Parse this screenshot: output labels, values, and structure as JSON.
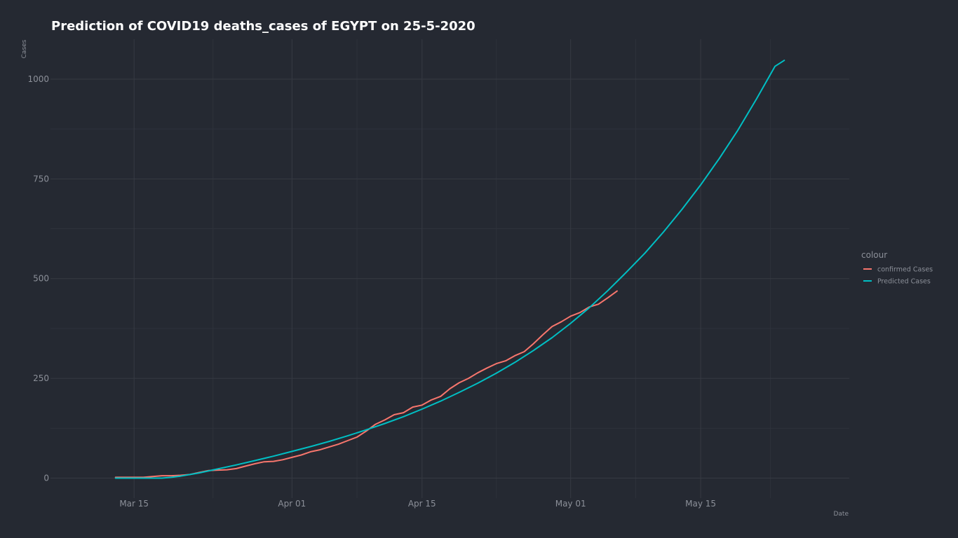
{
  "chart_data": {
    "type": "line",
    "title": "Prediction of COVID19 deaths_cases of EGYPT on 25-5-2020",
    "xlabel": "Date",
    "ylabel": "Cases",
    "x_type": "date",
    "xlim": [
      "2020-03-06",
      "2020-05-31"
    ],
    "ylim": [
      -50,
      1100
    ],
    "x_ticks": [
      {
        "date": "2020-03-15",
        "label": "Mar 15"
      },
      {
        "date": "2020-04-01",
        "label": "Apr 01"
      },
      {
        "date": "2020-04-15",
        "label": "Apr 15"
      },
      {
        "date": "2020-05-01",
        "label": "May 01"
      },
      {
        "date": "2020-05-15",
        "label": "May 15"
      }
    ],
    "y_ticks": [
      0,
      250,
      500,
      750,
      1000
    ],
    "grid": true,
    "legend": {
      "title": "colour",
      "position": "right"
    },
    "series": [
      {
        "name": "confirmed Cases",
        "color": "#f8766d",
        "points": [
          [
            "2020-03-13",
            2
          ],
          [
            "2020-03-14",
            2
          ],
          [
            "2020-03-15",
            2
          ],
          [
            "2020-03-16",
            2
          ],
          [
            "2020-03-17",
            4
          ],
          [
            "2020-03-18",
            6
          ],
          [
            "2020-03-19",
            6
          ],
          [
            "2020-03-20",
            7
          ],
          [
            "2020-03-21",
            9
          ],
          [
            "2020-03-22",
            14
          ],
          [
            "2020-03-23",
            19
          ],
          [
            "2020-03-24",
            20
          ],
          [
            "2020-03-25",
            21
          ],
          [
            "2020-03-26",
            24
          ],
          [
            "2020-03-27",
            30
          ],
          [
            "2020-03-28",
            36
          ],
          [
            "2020-03-29",
            41
          ],
          [
            "2020-03-30",
            42
          ],
          [
            "2020-03-31",
            46
          ],
          [
            "2020-04-01",
            52
          ],
          [
            "2020-04-02",
            58
          ],
          [
            "2020-04-03",
            66
          ],
          [
            "2020-04-04",
            71
          ],
          [
            "2020-04-05",
            78
          ],
          [
            "2020-04-06",
            85
          ],
          [
            "2020-04-07",
            94
          ],
          [
            "2020-04-08",
            103
          ],
          [
            "2020-04-09",
            118
          ],
          [
            "2020-04-10",
            135
          ],
          [
            "2020-04-11",
            146
          ],
          [
            "2020-04-12",
            159
          ],
          [
            "2020-04-13",
            164
          ],
          [
            "2020-04-14",
            178
          ],
          [
            "2020-04-15",
            183
          ],
          [
            "2020-04-16",
            196
          ],
          [
            "2020-04-17",
            205
          ],
          [
            "2020-04-18",
            224
          ],
          [
            "2020-04-19",
            239
          ],
          [
            "2020-04-20",
            250
          ],
          [
            "2020-04-21",
            264
          ],
          [
            "2020-04-22",
            276
          ],
          [
            "2020-04-23",
            287
          ],
          [
            "2020-04-24",
            294
          ],
          [
            "2020-04-25",
            307
          ],
          [
            "2020-04-26",
            317
          ],
          [
            "2020-04-27",
            337
          ],
          [
            "2020-04-28",
            359
          ],
          [
            "2020-04-29",
            380
          ],
          [
            "2020-04-30",
            392
          ],
          [
            "2020-05-01",
            406
          ],
          [
            "2020-05-02",
            415
          ],
          [
            "2020-05-03",
            429
          ],
          [
            "2020-05-04",
            436
          ],
          [
            "2020-05-05",
            452
          ],
          [
            "2020-05-06",
            469
          ]
        ]
      },
      {
        "name": "Predicted Cases",
        "color": "#00bfc4",
        "points": [
          [
            "2020-03-13",
            0
          ],
          [
            "2020-03-16",
            0
          ],
          [
            "2020-03-18",
            0
          ],
          [
            "2020-03-19",
            2
          ],
          [
            "2020-03-20",
            5
          ],
          [
            "2020-03-22",
            13
          ],
          [
            "2020-03-24",
            23
          ],
          [
            "2020-03-26",
            33
          ],
          [
            "2020-03-28",
            44
          ],
          [
            "2020-03-30",
            55
          ],
          [
            "2020-04-01",
            67
          ],
          [
            "2020-04-03",
            79
          ],
          [
            "2020-04-05",
            92
          ],
          [
            "2020-04-07",
            106
          ],
          [
            "2020-04-09",
            121
          ],
          [
            "2020-04-11",
            137
          ],
          [
            "2020-04-13",
            154
          ],
          [
            "2020-04-15",
            173
          ],
          [
            "2020-04-17",
            193
          ],
          [
            "2020-04-19",
            215
          ],
          [
            "2020-04-21",
            238
          ],
          [
            "2020-04-23",
            263
          ],
          [
            "2020-04-25",
            290
          ],
          [
            "2020-04-27",
            320
          ],
          [
            "2020-04-29",
            352
          ],
          [
            "2020-05-01",
            388
          ],
          [
            "2020-05-03",
            427
          ],
          [
            "2020-05-05",
            470
          ],
          [
            "2020-05-07",
            516
          ],
          [
            "2020-05-09",
            564
          ],
          [
            "2020-05-11",
            617
          ],
          [
            "2020-05-13",
            674
          ],
          [
            "2020-05-15",
            735
          ],
          [
            "2020-05-17",
            801
          ],
          [
            "2020-05-19",
            872
          ],
          [
            "2020-05-21",
            950
          ],
          [
            "2020-05-23",
            1032
          ],
          [
            "2020-05-24",
            1047
          ]
        ]
      }
    ]
  }
}
